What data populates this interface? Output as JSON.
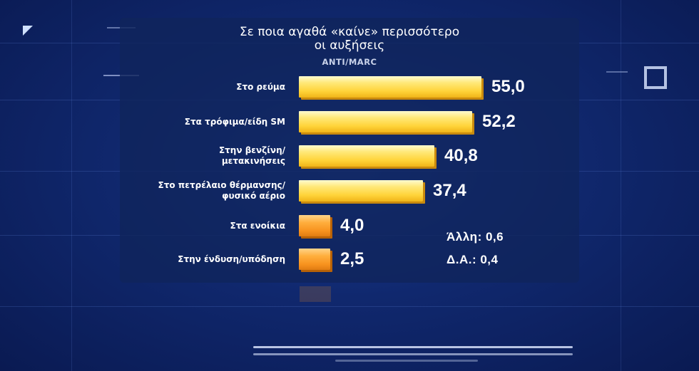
{
  "chart_data": {
    "type": "bar",
    "orientation": "horizontal",
    "title_lines": [
      "Σε ποια αγαθά «καίνε» περισσότερο",
      "οι αυξήσεις"
    ],
    "source": "ANTI/MARC",
    "categories": [
      [
        "Στο ρεύμα"
      ],
      [
        "Στα τρόφιμα/είδη SM"
      ],
      [
        "Στην βενζίνη/",
        "μετακινήσεις"
      ],
      [
        "Στο πετρέλαιο θέρμανσης/",
        "φυσικό αέριο"
      ],
      [
        "Στα ενοίκια"
      ],
      [
        "Στην ένδυση/υπόδηση"
      ]
    ],
    "values": [
      55.0,
      52.2,
      40.8,
      37.4,
      4.0,
      2.5
    ],
    "value_labels": [
      "55,0",
      "52,2",
      "40,8",
      "37,4",
      "4,0",
      "2,5"
    ],
    "bar_colors": [
      "yellow",
      "yellow",
      "yellow",
      "yellow",
      "orange",
      "orange"
    ],
    "notes": [
      "Άλλη: 0,6",
      "Δ.Α.: 0,4"
    ],
    "grid": false,
    "legend": "none"
  },
  "colors": {
    "background": "#10286e",
    "yellow_bar": "#ffd43a",
    "orange_bar": "#f7921e",
    "text": "#ffffff"
  }
}
